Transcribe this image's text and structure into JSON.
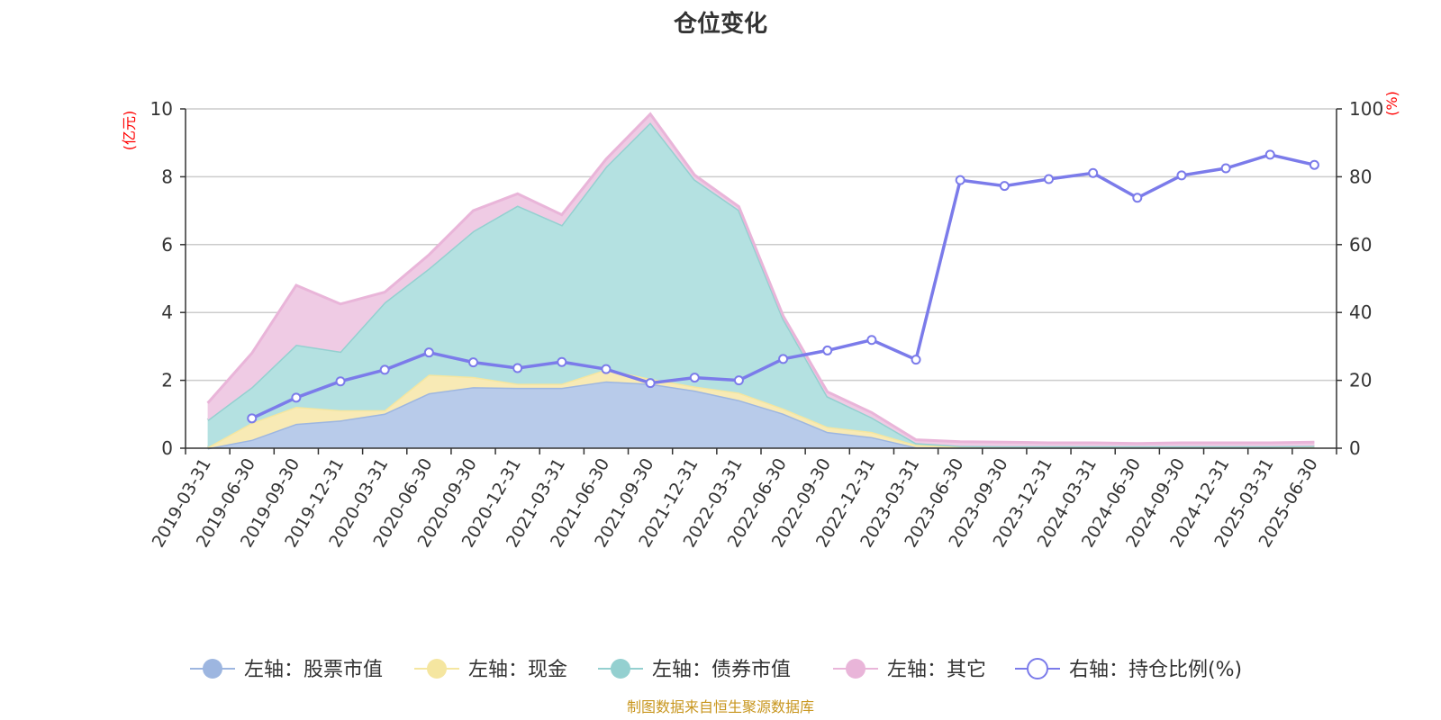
{
  "chart_data": {
    "type": "area",
    "title": "仓位变化",
    "source": "制图数据来自恒生聚源数据库",
    "left_axis": {
      "unit": "(亿元)",
      "range": [
        0,
        10
      ],
      "ticks": [
        "0",
        "2",
        "4",
        "6",
        "8",
        "10"
      ]
    },
    "right_axis": {
      "unit": "(%)",
      "range": [
        0,
        100
      ],
      "ticks": [
        "0",
        "20",
        "40",
        "60",
        "80",
        "100"
      ]
    },
    "categories": [
      "2019-03-31",
      "2019-06-30",
      "2019-09-30",
      "2019-12-31",
      "2020-03-31",
      "2020-06-30",
      "2020-09-30",
      "2020-12-31",
      "2021-03-31",
      "2021-06-30",
      "2021-09-30",
      "2021-12-31",
      "2022-03-31",
      "2022-06-30",
      "2022-09-30",
      "2022-12-31",
      "2023-03-31",
      "2023-06-30",
      "2023-09-30",
      "2023-12-31",
      "2024-03-31",
      "2024-06-30",
      "2024-09-30",
      "2024-12-31",
      "2025-03-31",
      "2025-06-30"
    ],
    "grid": true,
    "legend_position": "bottom",
    "series": [
      {
        "name": "左轴：股票市值",
        "axis": "left",
        "stack": true,
        "color": "#9db6e0",
        "fill": "#b8cbea",
        "values": [
          0,
          0.25,
          0.72,
          0.82,
          1.02,
          1.62,
          1.8,
          1.78,
          1.78,
          1.97,
          1.9,
          1.7,
          1.42,
          1.02,
          0.48,
          0.33,
          0.03,
          0.02,
          0.02,
          0.02,
          0.02,
          0.02,
          0.02,
          0.02,
          0.02,
          0.03
        ]
      },
      {
        "name": "左轴：现金",
        "axis": "left",
        "stack": true,
        "color": "#f5e6a0",
        "fill": "#f8eab5",
        "values": [
          0.03,
          0.5,
          0.5,
          0.3,
          0.1,
          0.55,
          0.3,
          0.12,
          0.12,
          0.35,
          0.15,
          0.12,
          0.22,
          0.15,
          0.15,
          0.15,
          0.07,
          0.02,
          0.02,
          0.02,
          0.02,
          0.02,
          0.02,
          0.02,
          0.02,
          0.02
        ]
      },
      {
        "name": "左轴：债券市值",
        "axis": "left",
        "stack": true,
        "color": "#94d0d0",
        "fill": "#b4e1e1",
        "values": [
          0.8,
          1.05,
          1.83,
          1.73,
          3.18,
          3.13,
          4.3,
          5.25,
          4.68,
          5.98,
          7.55,
          6.1,
          5.38,
          2.65,
          0.9,
          0.43,
          0.05,
          0.03,
          0.02,
          0.02,
          0.02,
          0.02,
          0.02,
          0.02,
          0.02,
          0.02
        ]
      },
      {
        "name": "左轴：其它",
        "axis": "left",
        "stack": true,
        "color": "#e9b5d9",
        "fill": "#efcbe4",
        "values": [
          0.5,
          1.0,
          1.75,
          1.4,
          0.3,
          0.4,
          0.6,
          0.35,
          0.3,
          0.22,
          0.25,
          0.13,
          0.1,
          0.08,
          0.13,
          0.14,
          0.1,
          0.12,
          0.12,
          0.1,
          0.1,
          0.08,
          0.1,
          0.1,
          0.1,
          0.11
        ]
      },
      {
        "name": "右轴：持仓比例(%)",
        "axis": "right",
        "stack": false,
        "color": "#7b7bea",
        "fill": "#ffffff",
        "values": [
          null,
          8.8,
          14.9,
          19.7,
          23.1,
          28.2,
          25.3,
          23.6,
          25.4,
          23.3,
          19.2,
          20.8,
          20.0,
          26.3,
          28.8,
          31.9,
          26.1,
          79.0,
          77.3,
          79.3,
          81.1,
          73.8,
          80.4,
          82.5,
          86.5,
          83.5
        ]
      }
    ]
  }
}
